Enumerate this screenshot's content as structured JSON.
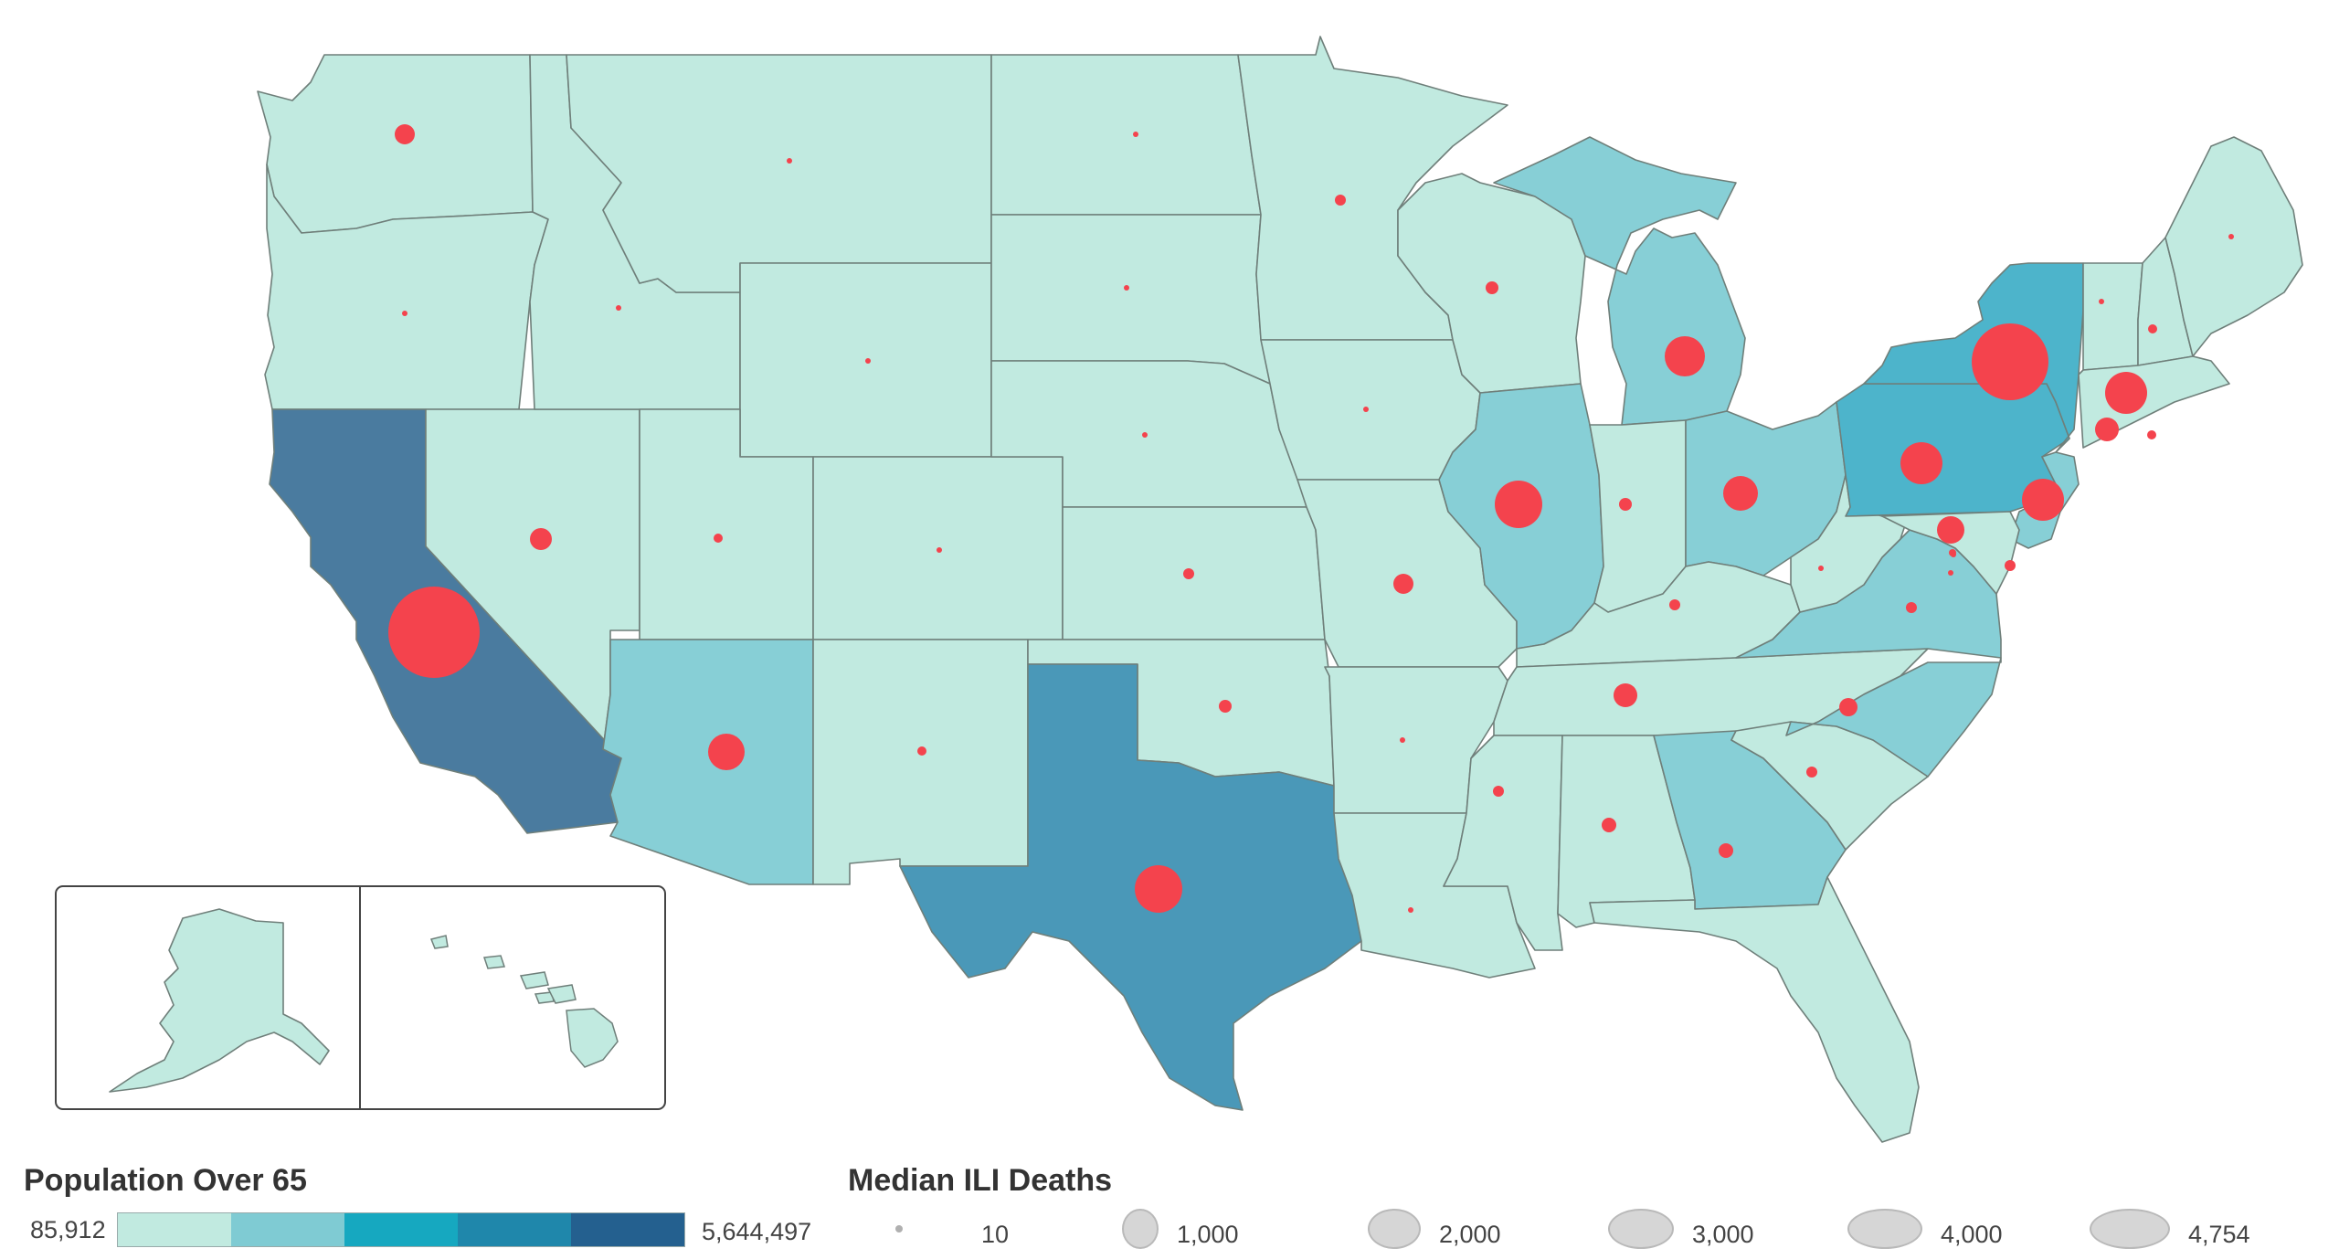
{
  "colors": {
    "ramp": [
      "#c1eae0",
      "#7fcbd3",
      "#16a8c0",
      "#1f87ab",
      "#24608f"
    ],
    "state_fill_1": "#c1eae0",
    "state_fill_2": "#87cfd6",
    "state_fill_3": "#4db4cb",
    "state_fill_4": "#4a98b8",
    "state_fill_5": "#4a7b9f",
    "bubble": "#f4434d",
    "border": "#6f7f7a"
  },
  "legend": {
    "population": {
      "title": "Population Over 65",
      "min_label": "85,912",
      "max_label": "5,644,497"
    },
    "deaths": {
      "title": "Median ILI Deaths",
      "items": [
        {
          "label": "10",
          "value": 10
        },
        {
          "label": "1,000",
          "value": 1000
        },
        {
          "label": "2,000",
          "value": 2000
        },
        {
          "label": "3,000",
          "value": 3000
        },
        {
          "label": "4,000",
          "value": 4000
        },
        {
          "label": "4,754",
          "value": 4754
        }
      ]
    }
  },
  "insets": [
    "alaska",
    "hawaii"
  ]
}
